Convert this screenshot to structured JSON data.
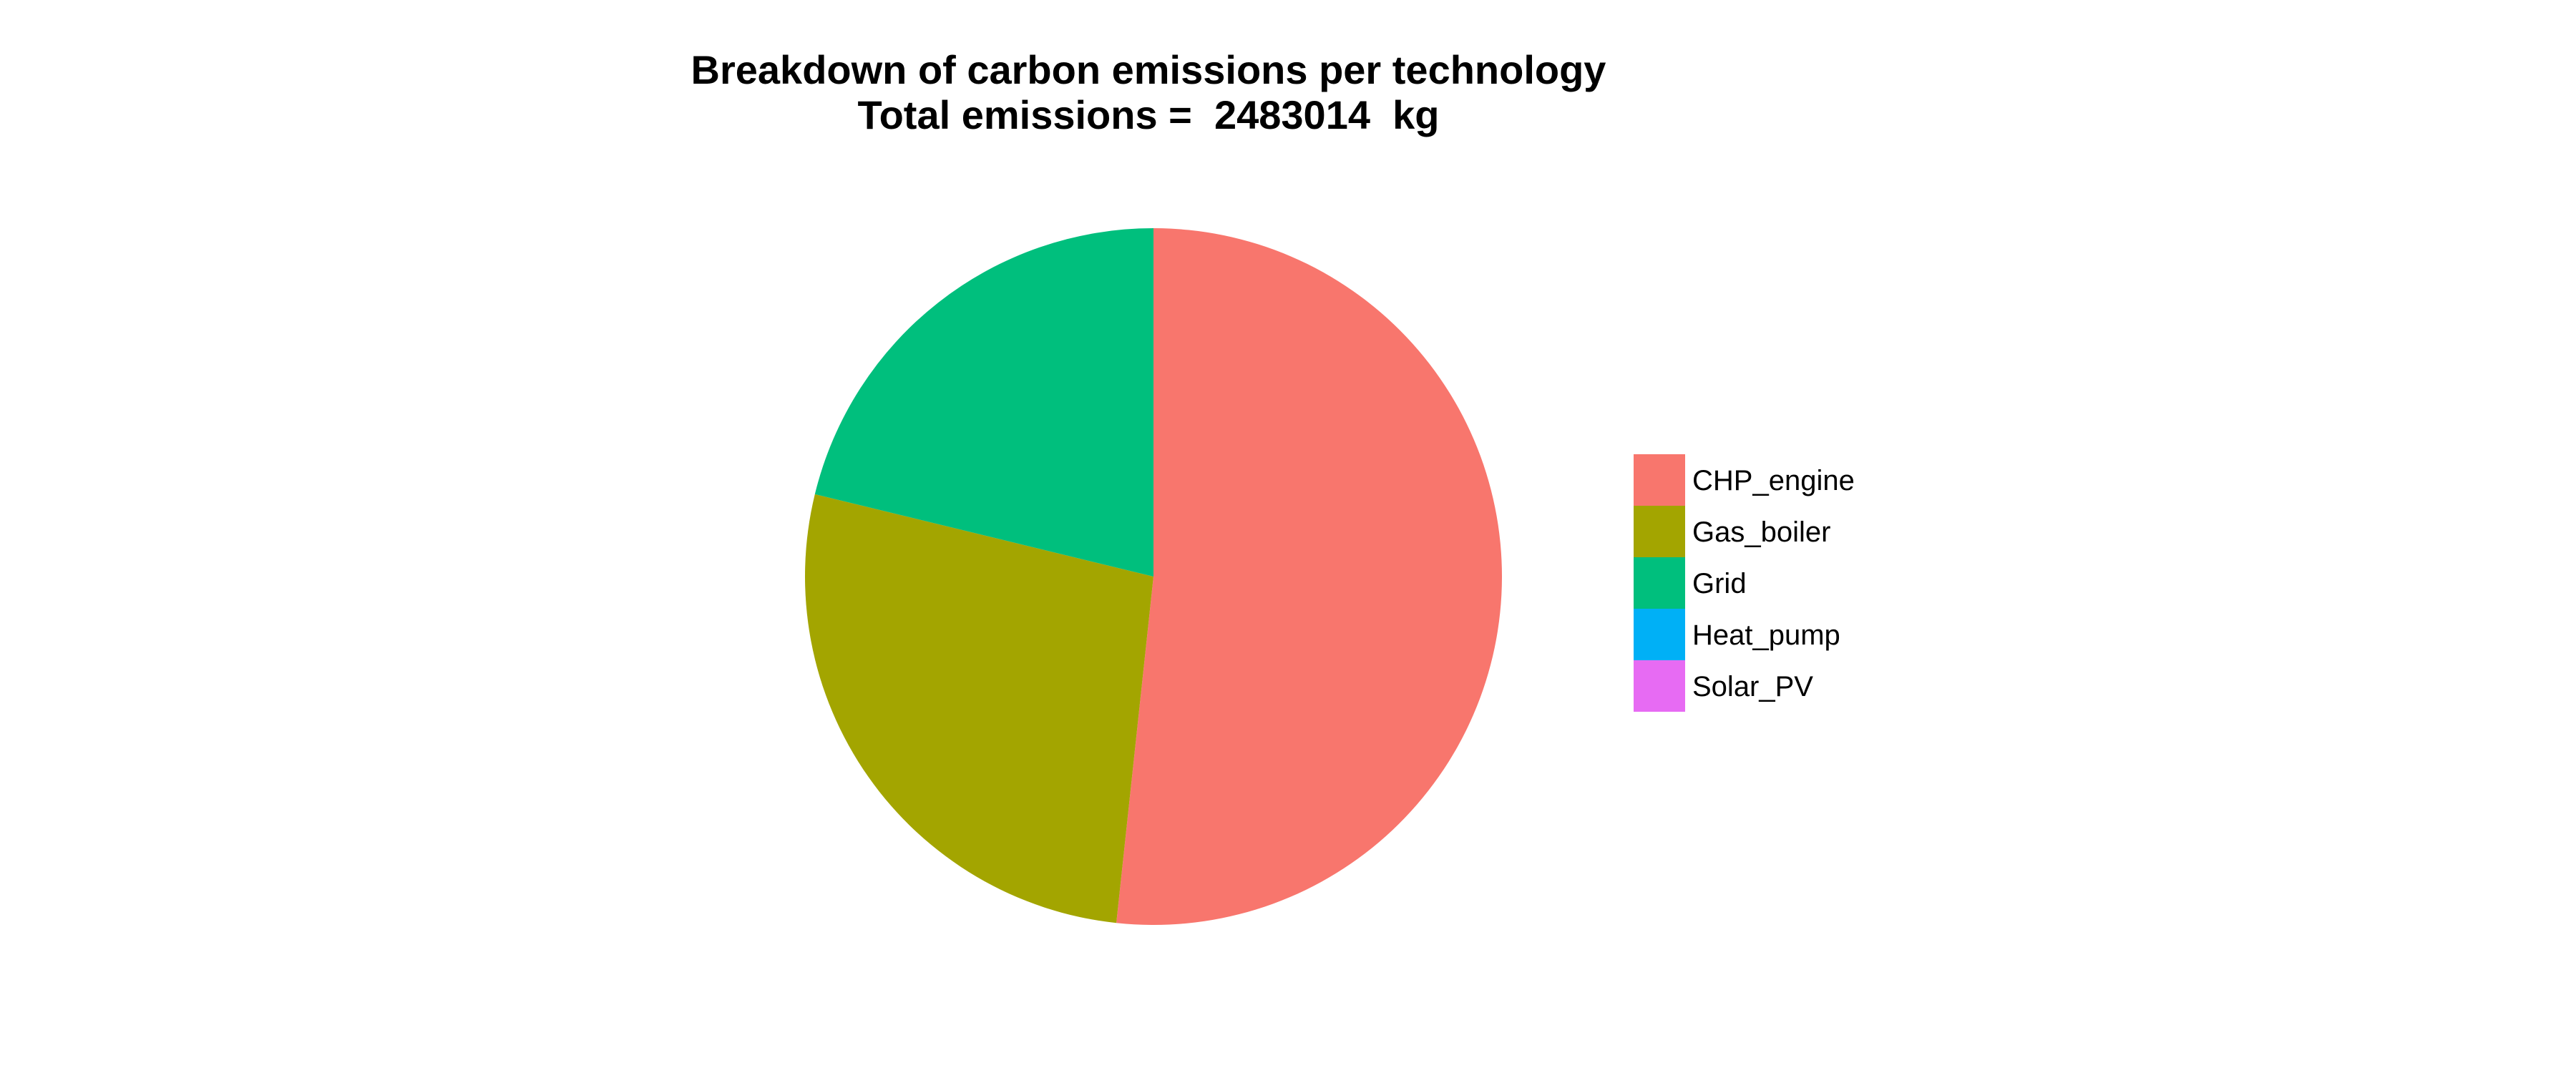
{
  "chart_data": {
    "type": "pie",
    "title": "Breakdown of carbon emissions per technology",
    "subtitle": "Total emissions =  2483014  kg",
    "categories": [
      "CHP_engine",
      "Gas_boiler",
      "Grid",
      "Heat_pump",
      "Solar_PV"
    ],
    "values": [
      51.7,
      27.1,
      21.2,
      0,
      0
    ],
    "colors": [
      "#F8766D",
      "#A3A500",
      "#00BF7D",
      "#00B0F6",
      "#E76BF3"
    ],
    "legend_position": "right"
  }
}
